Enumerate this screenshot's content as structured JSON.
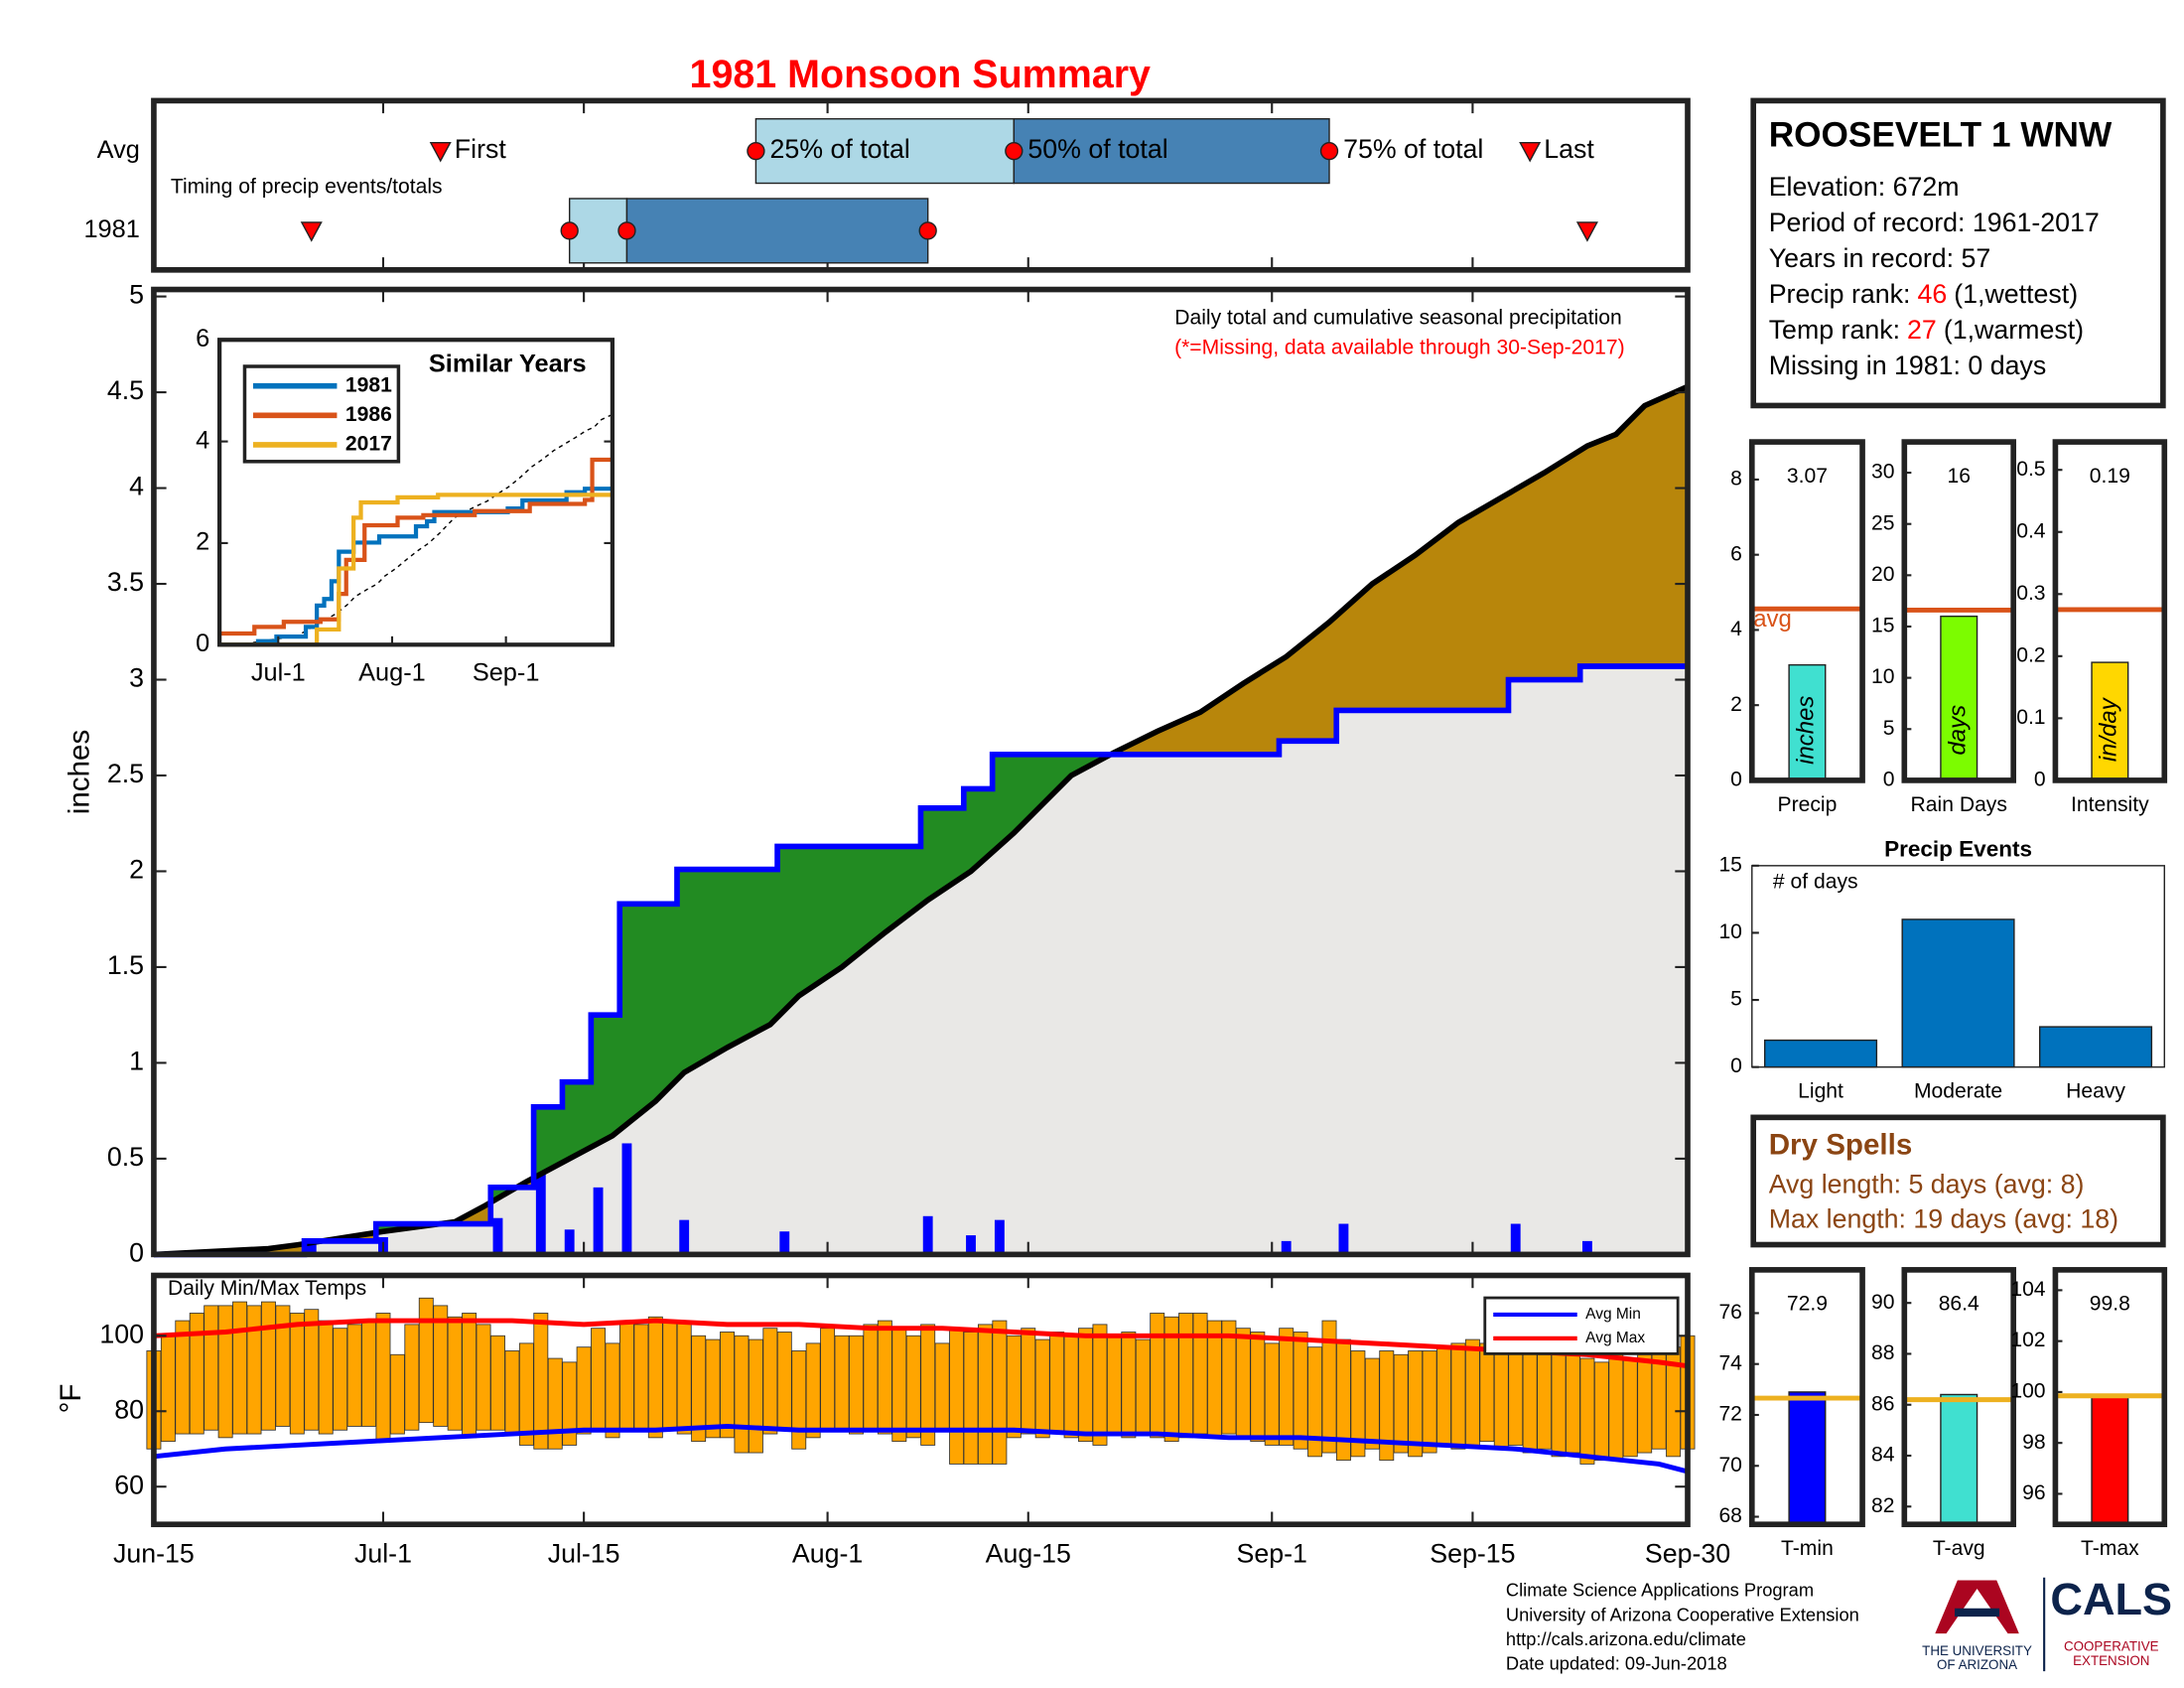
{
  "title": "1981 Monsoon Summary",
  "station": {
    "name": "ROOSEVELT 1 WNW",
    "lines": [
      "Elevation: 672m",
      "Period of record: 1961-2017",
      "Years in record: 57"
    ],
    "ranks": [
      {
        "label": "Precip rank:",
        "value": 46,
        "note": "(1,wettest)"
      },
      {
        "label": "Temp rank:",
        "value": 27,
        "note": "(1,warmest)"
      }
    ],
    "rank_color": "#ff0000",
    "missing": "Missing in 1981: 0 days"
  },
  "dry_spells": {
    "title": "Dry Spells",
    "lines": [
      "Avg length: 5 days (avg: 8)",
      "Max length: 19 days (avg: 18)"
    ],
    "color": "#8b4513"
  },
  "footer": {
    "lines": [
      "Climate Science Applications Program",
      "University of Arizona Cooperative Extension",
      "http://cals.arizona.edu/climate",
      "Date updated: 09-Jun-2018"
    ],
    "university": [
      "THE UNIVERSITY",
      "OF ARIZONA"
    ],
    "cals": "CALS",
    "extension": [
      "COOPERATIVE",
      "EXTENSION"
    ]
  },
  "chart_data": [
    {
      "type": "timing",
      "annotation": "Timing of precip events/totals",
      "xlim": [
        0,
        107
      ],
      "light_color": "#add8e6",
      "dark_color": "#4682b4",
      "marker_color": "#ff0000",
      "rows": [
        {
          "name": "Avg",
          "values": [
            20,
            42,
            60,
            82,
            96
          ],
          "labels": [
            "First",
            "25% of total",
            "50% of total",
            "75% of total",
            "Last"
          ]
        },
        {
          "name": "1981",
          "values": [
            11,
            29,
            33,
            54,
            100
          ]
        }
      ]
    },
    {
      "type": "cumulative",
      "ylabel": "inches",
      "annotation": "Daily total and cumulative seasonal precipitation",
      "note": "(*=Missing, data available through 30-Sep-2017)",
      "note_color": "#ff0000",
      "xlim": [
        0,
        107
      ],
      "ylim": [
        0,
        5
      ],
      "yticks": [
        0,
        0.5,
        1,
        1.5,
        2,
        2.5,
        3,
        3.5,
        4,
        4.5,
        5
      ],
      "above_color": "#228b22",
      "below_color": "#b8860b",
      "base_color": "#e9e8e6",
      "daily": {
        "color": "#0000ff",
        "x": [
          11,
          16,
          24,
          27,
          29,
          31,
          33,
          37,
          44,
          54,
          57,
          59,
          79,
          83,
          95,
          100
        ],
        "values": [
          0.07,
          0.09,
          0.19,
          0.42,
          0.13,
          0.35,
          0.58,
          0.18,
          0.12,
          0.2,
          0.1,
          0.18,
          0.07,
          0.16,
          0.16,
          0.07
        ]
      },
      "series": [
        {
          "color": "#0000ff",
          "step": true,
          "x": [
            0,
            11,
            16,
            24,
            27,
            29,
            31,
            33,
            37,
            44,
            54,
            57,
            59,
            79,
            83,
            95,
            100
          ],
          "values": [
            0,
            0.07,
            0.16,
            0.35,
            0.77,
            0.9,
            1.25,
            1.83,
            2.01,
            2.13,
            2.33,
            2.43,
            2.61,
            2.68,
            2.84,
            3.0,
            3.07
          ]
        },
        {
          "color": "#000000",
          "step": false,
          "x": [
            0,
            8,
            10,
            16,
            21,
            23,
            26,
            29,
            32,
            35,
            37,
            40,
            43,
            45,
            48,
            51,
            54,
            57,
            60,
            62,
            64,
            67,
            70,
            73,
            76,
            79,
            82,
            85,
            88,
            91,
            94,
            97,
            100,
            102,
            104,
            107
          ],
          "values": [
            0,
            0.03,
            0.05,
            0.12,
            0.17,
            0.25,
            0.38,
            0.5,
            0.62,
            0.8,
            0.95,
            1.08,
            1.2,
            1.35,
            1.5,
            1.68,
            1.85,
            2.0,
            2.2,
            2.35,
            2.5,
            2.62,
            2.73,
            2.83,
            2.98,
            3.12,
            3.3,
            3.5,
            3.65,
            3.82,
            3.95,
            4.08,
            4.22,
            4.28,
            4.43,
            4.53
          ]
        }
      ]
    },
    {
      "type": "line",
      "title": "Similar Years",
      "xlim": [
        0,
        107
      ],
      "ylim": [
        0,
        6
      ],
      "yticks": [
        0,
        2,
        4,
        6
      ],
      "xticks": [
        {
          "value": 16,
          "label": "Jul-1"
        },
        {
          "value": 47,
          "label": "Aug-1"
        },
        {
          "value": 78,
          "label": "Sep-1"
        }
      ],
      "series": [
        {
          "name": "1981",
          "color": "#0072bd",
          "x": [
            0,
            11,
            16,
            24,
            27,
            29,
            31,
            33,
            37,
            44,
            54,
            57,
            59,
            79,
            83,
            95,
            100
          ],
          "values": [
            0,
            0.07,
            0.16,
            0.35,
            0.77,
            0.9,
            1.25,
            1.83,
            2.01,
            2.13,
            2.33,
            2.43,
            2.61,
            2.68,
            2.84,
            3.0,
            3.07
          ]
        },
        {
          "name": "1986",
          "color": "#d95319",
          "x": [
            0,
            10,
            18,
            28,
            33,
            35,
            40,
            49,
            56,
            70,
            85,
            100,
            102
          ],
          "values": [
            0.22,
            0.35,
            0.45,
            0.5,
            1.0,
            1.67,
            2.35,
            2.5,
            2.55,
            2.63,
            2.77,
            2.85,
            3.64
          ]
        },
        {
          "name": "2017",
          "color": "#edb120",
          "x": [
            0,
            27,
            33,
            37,
            39,
            49,
            60
          ],
          "values": [
            0,
            0.3,
            1.5,
            2.5,
            2.8,
            2.9,
            2.95
          ]
        }
      ]
    },
    {
      "type": "gauge",
      "category": "Precip",
      "value": 3.07,
      "avg": 4.56,
      "avg_label": "avg",
      "unit": "inches",
      "color": "#40e0d0",
      "avg_color": "#d95319",
      "ylim": [
        0,
        9
      ],
      "yticks": [
        0,
        2,
        4,
        6,
        8
      ]
    },
    {
      "type": "gauge",
      "category": "Rain Days",
      "value": 16,
      "avg": 16.6,
      "unit": "days",
      "color": "#7cfc00",
      "avg_color": "#d95319",
      "ylim": [
        0,
        33
      ],
      "yticks": [
        0,
        5,
        10,
        15,
        20,
        25,
        30
      ]
    },
    {
      "type": "gauge",
      "category": "Intensity",
      "value": 0.19,
      "avg": 0.275,
      "unit": "in/day",
      "color": "#ffd700",
      "avg_color": "#d95319",
      "ylim": [
        0,
        0.545
      ],
      "yticks": [
        0,
        0.1,
        0.2,
        0.3,
        0.4,
        0.5
      ]
    },
    {
      "type": "bar",
      "title": "Precip Events",
      "annotation": "# of days",
      "categories": [
        "Light",
        "Moderate",
        "Heavy"
      ],
      "values": [
        2,
        11,
        3
      ],
      "color": "#0072bd",
      "ylim": [
        0,
        15
      ],
      "yticks": [
        0,
        5,
        10,
        15
      ]
    },
    {
      "type": "temps",
      "annotation": "Daily Min/Max Temps",
      "ylabel": "°F",
      "xlim": [
        0,
        107
      ],
      "ylim": [
        50,
        116
      ],
      "yticks": [
        60,
        80,
        100
      ],
      "xticks": [
        {
          "value": 0,
          "label": "Jun-15"
        },
        {
          "value": 16,
          "label": "Jul-1"
        },
        {
          "value": 30,
          "label": "Jul-15"
        },
        {
          "value": 47,
          "label": "Aug-1"
        },
        {
          "value": 61,
          "label": "Aug-15"
        },
        {
          "value": 78,
          "label": "Sep-1"
        },
        {
          "value": 92,
          "label": "Sep-15"
        },
        {
          "value": 107,
          "label": "Sep-30"
        }
      ],
      "color": "#ffa500",
      "legend": "upper right",
      "x": [
        0,
        1,
        2,
        3,
        4,
        5,
        6,
        7,
        8,
        9,
        10,
        11,
        12,
        13,
        14,
        15,
        16,
        17,
        18,
        19,
        20,
        21,
        22,
        23,
        24,
        25,
        26,
        27,
        28,
        29,
        30,
        31,
        32,
        33,
        34,
        35,
        36,
        37,
        38,
        39,
        40,
        41,
        42,
        43,
        44,
        45,
        46,
        47,
        48,
        49,
        50,
        51,
        52,
        53,
        54,
        55,
        56,
        57,
        58,
        59,
        60,
        61,
        62,
        63,
        64,
        65,
        66,
        67,
        68,
        69,
        70,
        71,
        72,
        73,
        74,
        75,
        76,
        77,
        78,
        79,
        80,
        81,
        82,
        83,
        84,
        85,
        86,
        87,
        88,
        89,
        90,
        91,
        92,
        93,
        94,
        95,
        96,
        97,
        98,
        99,
        100,
        101,
        102,
        103,
        104,
        105,
        106,
        107
      ],
      "max": [
        96,
        100,
        104,
        106,
        108,
        108,
        109,
        108,
        109,
        108,
        106,
        107,
        104,
        102,
        103,
        104,
        106,
        95,
        103,
        110,
        108,
        105,
        106,
        103,
        100,
        96,
        98,
        106,
        94,
        93,
        97,
        102,
        98,
        104,
        103,
        105,
        104,
        104,
        100,
        99,
        101,
        100,
        99,
        102,
        101,
        96,
        98,
        102,
        100,
        100,
        103,
        104,
        102,
        100,
        103,
        98,
        102,
        101,
        103,
        104,
        100,
        102,
        99,
        101,
        100,
        102,
        103,
        100,
        101,
        99,
        106,
        105,
        106,
        106,
        104,
        104,
        102,
        101,
        98,
        102,
        101,
        97,
        104,
        99,
        96,
        94,
        96,
        95,
        96,
        96,
        97,
        98,
        99,
        98,
        97,
        96,
        97,
        95,
        97,
        96,
        94,
        93,
        95,
        94,
        95,
        96,
        97,
        100
      ],
      "min": [
        70,
        72,
        74,
        74,
        75,
        73,
        74,
        74,
        75,
        76,
        74,
        75,
        74,
        75,
        76,
        76,
        72,
        74,
        75,
        77,
        76,
        75,
        73,
        75,
        75,
        74,
        71,
        70,
        70,
        71,
        74,
        75,
        73,
        75,
        75,
        73,
        75,
        74,
        72,
        73,
        73,
        69,
        69,
        74,
        75,
        70,
        73,
        75,
        75,
        74,
        75,
        74,
        72,
        73,
        71,
        75,
        66,
        66,
        66,
        66,
        73,
        74,
        73,
        74,
        73,
        72,
        71,
        74,
        73,
        74,
        73,
        72,
        73,
        74,
        73,
        74,
        73,
        72,
        71,
        71,
        70,
        68,
        69,
        67,
        68,
        70,
        67,
        69,
        68,
        69,
        71,
        70,
        71,
        72,
        70,
        71,
        69,
        70,
        68,
        69,
        66,
        67,
        67,
        68,
        69,
        70,
        68,
        70
      ],
      "series": [
        {
          "name": "Avg Min",
          "color": "#0000ff",
          "x": [
            0,
            5,
            10,
            15,
            20,
            25,
            30,
            35,
            40,
            45,
            50,
            55,
            60,
            65,
            70,
            75,
            80,
            85,
            90,
            95,
            100,
            105,
            107
          ],
          "values": [
            68,
            70,
            71,
            72,
            73,
            74,
            75,
            75,
            76,
            75,
            75,
            75,
            75,
            74,
            74,
            73,
            73,
            72,
            71,
            70,
            68,
            66,
            64
          ]
        },
        {
          "name": "Avg Max",
          "color": "#ff0000",
          "x": [
            0,
            5,
            10,
            15,
            20,
            25,
            30,
            35,
            40,
            45,
            50,
            55,
            60,
            65,
            70,
            75,
            80,
            85,
            90,
            95,
            100,
            105,
            107
          ],
          "values": [
            100,
            101,
            103,
            104,
            104,
            104,
            103,
            104,
            103,
            103,
            102,
            102,
            101,
            100,
            100,
            100,
            99,
            98,
            97,
            96,
            95,
            93,
            92
          ]
        }
      ]
    },
    {
      "type": "gauge",
      "category": "T-min",
      "value": 72.9,
      "avg": 72.66,
      "color": "#0000ff",
      "avg_color": "#edb120",
      "ylim": [
        67.7,
        77.7
      ],
      "yticks": [
        68,
        70,
        72,
        74,
        76
      ]
    },
    {
      "type": "gauge",
      "category": "T-avg",
      "value": 86.4,
      "avg": 86.2,
      "color": "#40e0d0",
      "avg_color": "#edb120",
      "ylim": [
        81.3,
        91.3
      ],
      "yticks": [
        82,
        84,
        86,
        88,
        90
      ]
    },
    {
      "type": "gauge",
      "category": "T-max",
      "value": 99.8,
      "avg": 99.85,
      "color": "#ff0000",
      "avg_color": "#edb120",
      "ylim": [
        94.8,
        104.8
      ],
      "yticks": [
        96,
        98,
        100,
        102,
        104
      ]
    }
  ]
}
